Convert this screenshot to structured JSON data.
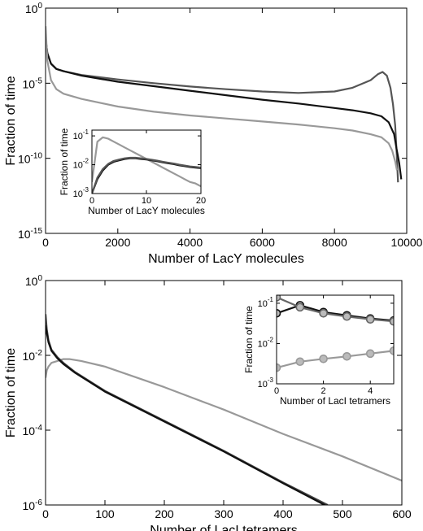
{
  "chart_data": [
    {
      "type": "line",
      "xlabel": "Number of LacY molecules",
      "ylabel": "Fraction of time",
      "xlim": [
        0,
        10000
      ],
      "ylim_log10": [
        -15,
        0
      ],
      "yscale": "log",
      "x_ticks": [
        0,
        2000,
        4000,
        6000,
        8000,
        10000
      ],
      "y_ticks": [
        {
          "exp": "-15"
        },
        {
          "exp": "-10"
        },
        {
          "exp": "-5"
        },
        {
          "exp": "0"
        }
      ],
      "grid": false,
      "series": [
        {
          "color": "#555555",
          "x": [
            0,
            50,
            150,
            300,
            500,
            1000,
            2000,
            3000,
            4000,
            5000,
            6000,
            7000,
            8000,
            8500,
            9000,
            9200,
            9330,
            9450,
            9550,
            9620,
            9680,
            9720,
            9760
          ],
          "log10y": [
            -2.0,
            -3.0,
            -3.7,
            -4.05,
            -4.2,
            -4.45,
            -4.75,
            -5.0,
            -5.22,
            -5.4,
            -5.55,
            -5.65,
            -5.55,
            -5.3,
            -4.8,
            -4.4,
            -4.25,
            -4.5,
            -5.3,
            -6.4,
            -7.8,
            -9.6,
            -11.6
          ]
        },
        {
          "color": "#111111",
          "x": [
            0,
            50,
            150,
            300,
            500,
            1000,
            2000,
            3000,
            4000,
            5000,
            6000,
            7000,
            8000,
            8500,
            9000,
            9300,
            9500,
            9650,
            9720,
            9790,
            9850
          ],
          "log10y": [
            -2.0,
            -3.0,
            -3.7,
            -4.05,
            -4.2,
            -4.5,
            -4.9,
            -5.2,
            -5.5,
            -5.8,
            -6.1,
            -6.35,
            -6.65,
            -6.8,
            -7.0,
            -7.2,
            -7.6,
            -8.4,
            -9.4,
            -10.3,
            -11.4
          ]
        },
        {
          "color": "#999999",
          "x": [
            0,
            50,
            150,
            300,
            500,
            1000,
            2000,
            3000,
            4000,
            5000,
            6000,
            7000,
            8000,
            8500,
            9000,
            9300,
            9500,
            9600,
            9680,
            9730
          ],
          "log10y": [
            -1.2,
            -3.5,
            -4.8,
            -5.4,
            -5.7,
            -6.05,
            -6.55,
            -6.9,
            -7.15,
            -7.35,
            -7.55,
            -7.75,
            -8.0,
            -8.15,
            -8.4,
            -8.6,
            -9.0,
            -9.5,
            -10.2,
            -10.8
          ]
        }
      ],
      "inset": {
        "xlabel": "Number of LacY molecules",
        "ylabel": "Fraction of time",
        "xlim": [
          0,
          20
        ],
        "ylim_log10": [
          -3,
          -0.8
        ],
        "x_ticks": [
          0,
          10,
          20
        ],
        "y_ticks": [
          {
            "exp": "-3"
          },
          {
            "exp": "-2"
          },
          {
            "exp": "-1"
          }
        ],
        "series": [
          {
            "color": "#999999",
            "x": [
              0,
              1,
              2,
              3,
              4,
              5,
              6,
              7,
              8,
              9,
              10,
              11,
              12,
              13,
              14,
              15,
              16,
              17,
              18,
              19,
              20
            ],
            "log10y": [
              -2.6,
              -1.2,
              -1.05,
              -1.1,
              -1.2,
              -1.3,
              -1.4,
              -1.5,
              -1.6,
              -1.7,
              -1.8,
              -1.9,
              -2.0,
              -2.1,
              -2.2,
              -2.3,
              -2.4,
              -2.5,
              -2.6,
              -2.65,
              -2.75
            ]
          },
          {
            "color": "#111111",
            "x": [
              0,
              1,
              2,
              3,
              4,
              5,
              6,
              7,
              8,
              9,
              10,
              11,
              12,
              13,
              14,
              15,
              16,
              17,
              18,
              19,
              20
            ],
            "log10y": [
              -3.0,
              -2.5,
              -2.2,
              -2.0,
              -1.9,
              -1.85,
              -1.8,
              -1.78,
              -1.78,
              -1.8,
              -1.82,
              -1.85,
              -1.88,
              -1.92,
              -1.95,
              -1.98,
              -2.02,
              -2.05,
              -2.08,
              -2.1,
              -2.12
            ]
          },
          {
            "color": "#555555",
            "x": [
              0,
              1,
              2,
              3,
              4,
              5,
              6,
              7,
              8,
              9,
              10,
              11,
              12,
              13,
              14,
              15,
              16,
              17,
              18,
              19,
              20
            ],
            "log10y": [
              -3.0,
              -2.45,
              -2.15,
              -1.97,
              -1.87,
              -1.82,
              -1.78,
              -1.76,
              -1.76,
              -1.78,
              -1.8,
              -1.83,
              -1.86,
              -1.9,
              -1.93,
              -1.96,
              -2.0,
              -2.03,
              -2.06,
              -2.08,
              -2.1
            ]
          }
        ]
      }
    },
    {
      "type": "line",
      "xlabel": "Number of LacI tetramers",
      "ylabel": "Fraction of time",
      "xlim": [
        0,
        600
      ],
      "ylim_log10": [
        -6,
        0
      ],
      "yscale": "log",
      "x_ticks": [
        0,
        100,
        200,
        300,
        400,
        500,
        600
      ],
      "y_ticks": [
        {
          "exp": "-6"
        },
        {
          "exp": "-4"
        },
        {
          "exp": "-2"
        },
        {
          "exp": "0"
        }
      ],
      "grid": false,
      "series": [
        {
          "color": "#999999",
          "x": [
            0,
            2,
            5,
            10,
            20,
            30,
            40,
            60,
            100,
            200,
            300,
            400,
            500,
            600
          ],
          "log10y": [
            -2.6,
            -2.4,
            -2.3,
            -2.2,
            -2.15,
            -2.1,
            -2.1,
            -2.15,
            -2.3,
            -2.85,
            -3.45,
            -4.1,
            -4.7,
            -5.35
          ]
        },
        {
          "color": "#444444",
          "x": [
            0,
            2,
            5,
            10,
            20,
            30,
            50,
            100,
            200,
            300,
            400,
            475
          ],
          "log10y": [
            -0.9,
            -1.3,
            -1.6,
            -1.85,
            -2.05,
            -2.2,
            -2.45,
            -2.95,
            -3.75,
            -4.55,
            -5.4,
            -6.0
          ]
        },
        {
          "color": "#111111",
          "x": [
            0,
            2,
            5,
            10,
            20,
            30,
            50,
            100,
            200,
            300,
            400,
            470
          ],
          "log10y": [
            -1.2,
            -1.4,
            -1.65,
            -1.88,
            -2.08,
            -2.23,
            -2.47,
            -2.97,
            -3.77,
            -4.57,
            -5.42,
            -6.0
          ]
        }
      ],
      "inset": {
        "xlabel": "Number of LacI tetramers",
        "ylabel": "Fraction of time",
        "xlim": [
          0,
          5
        ],
        "ylim_log10": [
          -3,
          -0.8
        ],
        "x_ticks": [
          0,
          2,
          4
        ],
        "y_ticks": [
          {
            "exp": "-3"
          },
          {
            "exp": "-2"
          },
          {
            "exp": "-1"
          }
        ],
        "series": [
          {
            "color": "#999999",
            "marker": "circle",
            "x": [
              0,
              1,
              2,
              3,
              4,
              5
            ],
            "log10y": [
              -2.6,
              -2.45,
              -2.38,
              -2.32,
              -2.25,
              -2.18
            ]
          },
          {
            "color": "#111111",
            "marker": "circle",
            "x": [
              0,
              1,
              2,
              3,
              4,
              5
            ],
            "log10y": [
              -1.25,
              -1.05,
              -1.22,
              -1.3,
              -1.38,
              -1.43
            ]
          },
          {
            "color": "#666666",
            "marker": "circle",
            "x": [
              0,
              1,
              2,
              3,
              4,
              5
            ],
            "log10y": [
              -0.85,
              -1.1,
              -1.25,
              -1.33,
              -1.4,
              -1.45
            ]
          }
        ]
      }
    }
  ]
}
